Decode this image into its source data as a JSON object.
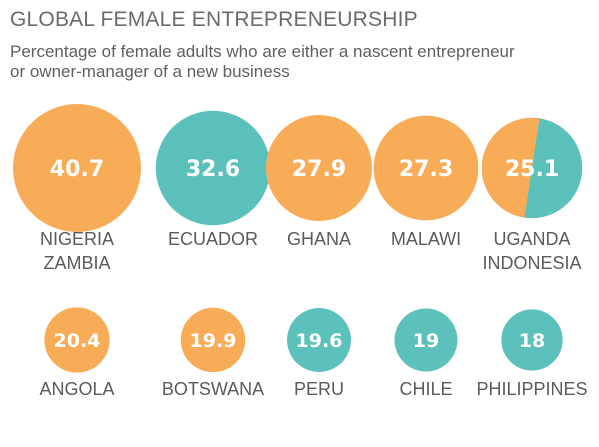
{
  "title": "GLOBAL FEMALE ENTREPRENEURSHIP",
  "subtitle_lines": [
    "Percentage of female adults who are either a nascent entrepreneur",
    "or owner-manager of a new business"
  ],
  "colors": {
    "orange": "#f9ac57",
    "teal": "#5cc1bb",
    "label": "#5b5b5b",
    "title": "#6b6b6b"
  },
  "chart_data": {
    "type": "bubble",
    "title": "GLOBAL FEMALE ENTREPRENEURSHIP",
    "subtitle": "Percentage of female adults who are either a nascent entrepreneur or owner-manager of a new business",
    "unit": "%",
    "points": [
      {
        "value": 40.7,
        "value_label": "40.7",
        "label_lines": [
          "NIGERIA",
          "ZAMBIA"
        ],
        "fill": "orange",
        "row": 1
      },
      {
        "value": 32.6,
        "value_label": "32.6",
        "label_lines": [
          "ECUADOR"
        ],
        "fill": "teal",
        "row": 1
      },
      {
        "value": 27.9,
        "value_label": "27.9",
        "label_lines": [
          "GHANA"
        ],
        "fill": "orange",
        "row": 1
      },
      {
        "value": 27.3,
        "value_label": "27.3",
        "label_lines": [
          "MALAWI"
        ],
        "fill": "orange",
        "row": 1
      },
      {
        "value": 25.1,
        "value_label": "25.1",
        "label_lines": [
          "UGANDA",
          "INDONESIA"
        ],
        "fill": "split",
        "row": 1
      },
      {
        "value": 20.4,
        "value_label": "20.4",
        "label_lines": [
          "ANGOLA"
        ],
        "fill": "orange",
        "row": 2
      },
      {
        "value": 19.9,
        "value_label": "19.9",
        "label_lines": [
          "BOTSWANA"
        ],
        "fill": "orange",
        "row": 2
      },
      {
        "value": 19.6,
        "value_label": "19.6",
        "label_lines": [
          "PERU"
        ],
        "fill": "teal",
        "row": 2
      },
      {
        "value": 19,
        "value_label": "19",
        "label_lines": [
          "CHILE"
        ],
        "fill": "teal",
        "row": 2
      },
      {
        "value": 18,
        "value_label": "18",
        "label_lines": [
          "PHILIPPINES"
        ],
        "fill": "teal",
        "row": 2
      }
    ]
  }
}
